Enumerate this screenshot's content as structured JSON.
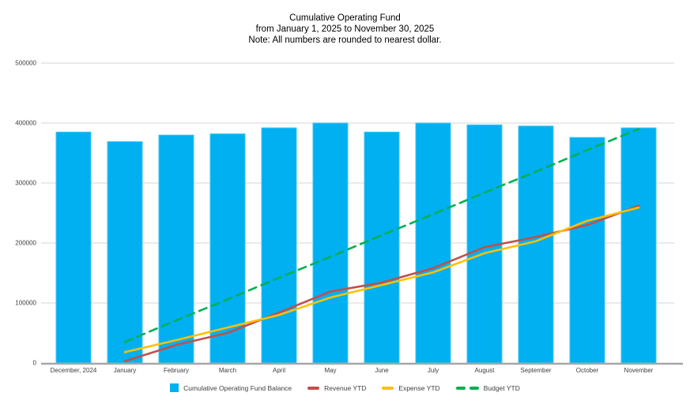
{
  "title": {
    "line1": "Cumulative Operating Fund",
    "line2": "from January 1, 2025 to November 30, 2025",
    "line3": "Note: All numbers are rounded to nearest dollar."
  },
  "axes": {
    "y_tick_labels": [
      "0",
      "100000",
      "200000",
      "300000",
      "400000",
      "500000"
    ],
    "grid_color": "#e4e4e4",
    "axis_line_color": "#a6a6a6",
    "tick_label_color": "#404040"
  },
  "chart_data": {
    "type": "bar",
    "subtype": "combo-bar-line",
    "title": "Cumulative Operating Fund",
    "subtitle": "from January 1, 2025 to November 30, 2025",
    "note": "Note: All numbers are rounded to nearest dollar.",
    "categories": [
      "December, 2024",
      "January",
      "February",
      "March",
      "April",
      "May",
      "June",
      "July",
      "August",
      "September",
      "October",
      "November"
    ],
    "series": [
      {
        "name": "Cumulative Operating Fund Balance",
        "type": "bar",
        "color": "#00b0f0",
        "values": [
          385000,
          369000,
          380000,
          382000,
          392000,
          400000,
          385000,
          400000,
          397000,
          395000,
          376000,
          392000
        ]
      },
      {
        "name": "Revenue YTD",
        "type": "line",
        "dashed": false,
        "color": "#c0504d",
        "values": [
          null,
          3000,
          30000,
          50000,
          84000,
          119000,
          134000,
          158000,
          193000,
          210000,
          230000,
          262000
        ]
      },
      {
        "name": "Expense YTD",
        "type": "line",
        "dashed": false,
        "color": "#ffc000",
        "values": [
          null,
          18000,
          38000,
          59000,
          80000,
          109000,
          130000,
          151000,
          183000,
          203000,
          237000,
          259000
        ]
      },
      {
        "name": "Budget YTD",
        "type": "line",
        "dashed": true,
        "color": "#00b050",
        "values": [
          null,
          35000,
          71000,
          106000,
          142000,
          177000,
          213000,
          248000,
          284000,
          319000,
          355000,
          390000
        ]
      }
    ],
    "xlabel": "",
    "ylabel": "",
    "ylim": [
      0,
      500000
    ],
    "ytick_interval": 100000,
    "grid": true,
    "legend_position": "bottom"
  }
}
